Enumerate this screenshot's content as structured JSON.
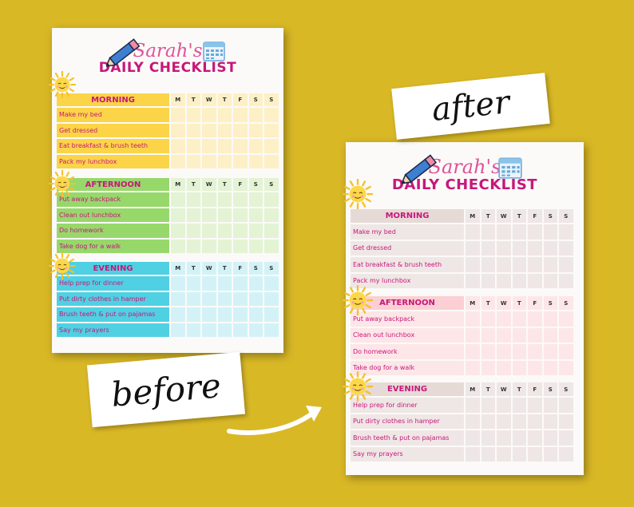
{
  "header": {
    "name": "Sarah's",
    "title": "DAILY CHECKLIST"
  },
  "days": [
    "M",
    "T",
    "W",
    "T",
    "F",
    "S",
    "S"
  ],
  "sections": [
    {
      "title": "MORNING",
      "items": [
        "Make my bed",
        "Get dressed",
        "Eat breakfast & brush teeth",
        "Pack my lunchbox"
      ]
    },
    {
      "title": "AFTERNOON",
      "items": [
        "Put away backpack",
        "Clean out lunchbox",
        "Do homework",
        "Take dog for a walk"
      ]
    },
    {
      "title": "EVENING",
      "items": [
        "Help prep for dinner",
        "Put dirty clothes in hamper",
        "Brush teeth & put on pajamas",
        "Say my prayers"
      ]
    }
  ],
  "labels": {
    "after": "after",
    "before": "before"
  },
  "colors": {
    "background": "#d9b826",
    "before_morning": [
      "#fbd448",
      "#fdf0c6"
    ],
    "before_afternoon": [
      "#97d86b",
      "#e3f3d4"
    ],
    "before_evening": [
      "#4fd0e3",
      "#d3f2f7"
    ],
    "after_morning": [
      "#e6dad7",
      "#efe7e5"
    ],
    "after_afternoon": [
      "#fbcfd3",
      "#fde6e8"
    ],
    "after_evening": [
      "#e6dad7",
      "#efe7e5"
    ]
  },
  "icons": [
    "pencil-icon",
    "calendar-icon",
    "sun-icon",
    "arrow-icon"
  ]
}
